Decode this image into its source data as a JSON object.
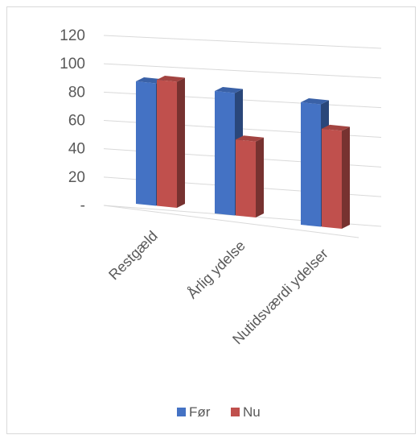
{
  "chart_data": {
    "type": "bar",
    "categories": [
      "Restgæld",
      "Årlig ydelse",
      "Nutidsværdi ydelser"
    ],
    "series": [
      {
        "name": "Før",
        "values": [
          100,
          100,
          100
        ],
        "color": "#4472C4"
      },
      {
        "name": "Nu",
        "values": [
          103,
          62,
          80
        ],
        "color": "#C0504D"
      }
    ],
    "ylim": [
      0,
      120
    ],
    "yticks": [
      "-",
      "20",
      "40",
      "60",
      "80",
      "100",
      "120"
    ],
    "grid": true,
    "legend": "bottom",
    "style": "3d-clustered-column"
  }
}
